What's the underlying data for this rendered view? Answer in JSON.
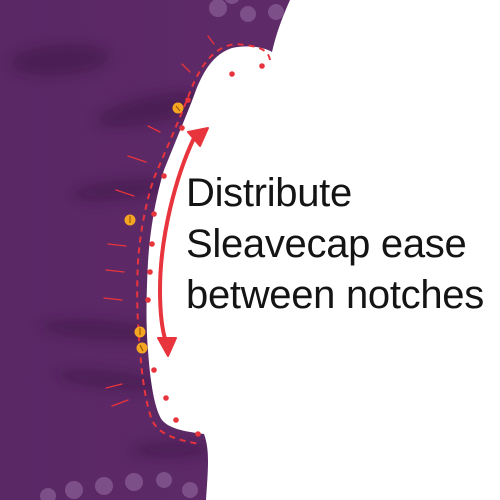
{
  "caption": {
    "line1": "Distribute",
    "line2": "Sleavecap ease",
    "line3": "between notches"
  },
  "colors": {
    "fabric": "#5e2a68",
    "fabric_shadow": "#3f1848",
    "polka_dot": "#7d4f88",
    "stitch_line": "#e8343c",
    "notch_marker": "#f4a623",
    "arrow": "#e8343c",
    "background": "#ffffff",
    "text": "#141414"
  },
  "icons": {
    "arrow": "double-headed-arrow",
    "notch": "notch-marker",
    "pin": "pin-dot"
  }
}
